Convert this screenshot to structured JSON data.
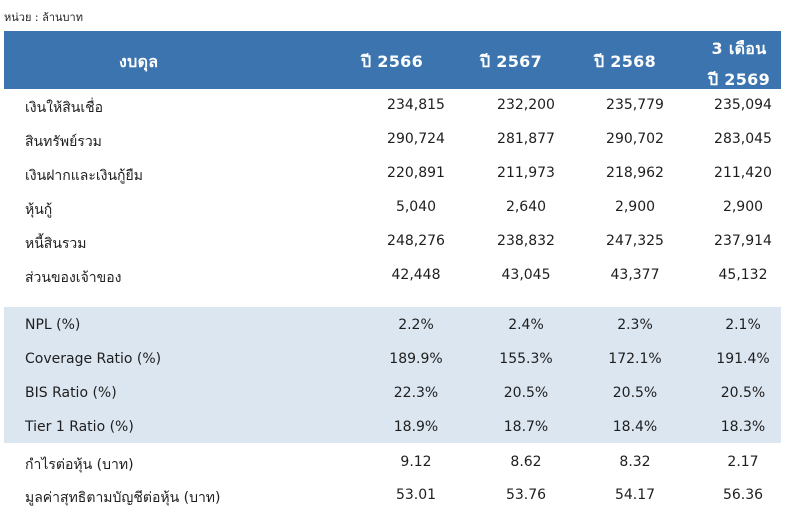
{
  "unit_label": "หน่วย : ล้านบาท",
  "header": {
    "label": "งบดุล",
    "col1": "ปี 2566",
    "col2": "ปี 2567",
    "col3": "ปี 2568",
    "col4_line1": "3 เดือน",
    "col4_line2": "ปี 2569"
  },
  "rows": [
    {
      "label": "เงินให้สินเชื่อ",
      "v1": "234,815",
      "v2": "232,200",
      "v3": "235,779",
      "v4": "235,094"
    },
    {
      "label": "สินทรัพย์รวม",
      "v1": "290,724",
      "v2": "281,877",
      "v3": "290,702",
      "v4": "283,045"
    },
    {
      "label": "เงินฝากและเงินกู้ยืม",
      "v1": "220,891",
      "v2": "211,973",
      "v3": "218,962",
      "v4": "211,420"
    },
    {
      "label": "หุ้นกู้",
      "v1": "5,040",
      "v2": "2,640",
      "v3": "2,900",
      "v4": "2,900"
    },
    {
      "label": "หนี้สินรวม",
      "v1": "248,276",
      "v2": "238,832",
      "v3": "247,325",
      "v4": "237,914"
    },
    {
      "label": "ส่วนของเจ้าของ",
      "v1": "42,448",
      "v2": "43,045",
      "v3": "43,377",
      "v4": "45,132"
    },
    {
      "label": "NPL (%)",
      "v1": "2.2%",
      "v2": "2.4%",
      "v3": "2.3%",
      "v4": "2.1%"
    },
    {
      "label": "Coverage Ratio (%)",
      "v1": "189.9%",
      "v2": "155.3%",
      "v3": "172.1%",
      "v4": "191.4%"
    },
    {
      "label": "BIS Ratio (%)",
      "v1": "22.3%",
      "v2": "20.5%",
      "v3": "20.5%",
      "v4": "20.5%"
    },
    {
      "label": "Tier 1 Ratio (%)",
      "v1": "18.9%",
      "v2": "18.7%",
      "v3": "18.4%",
      "v4": "18.3%"
    },
    {
      "label": "กำไรต่อหุ้น (บาท)",
      "v1": "9.12",
      "v2": "8.62",
      "v3": "8.32",
      "v4": "2.17"
    },
    {
      "label": "มูลค่าสุทธิตามบัญชีต่อหุ้น (บาท)",
      "v1": "53.01",
      "v2": "53.76",
      "v3": "54.17",
      "v4": "56.36"
    }
  ]
}
